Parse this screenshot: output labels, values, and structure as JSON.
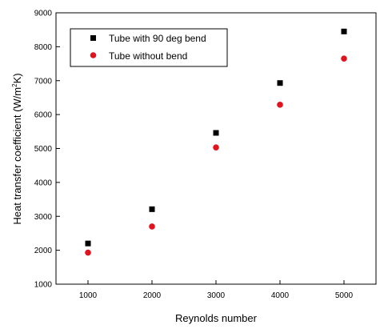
{
  "chart_data": {
    "type": "scatter",
    "title": "",
    "xlabel": "Reynolds number",
    "ylabel_main": "Heat transfer coefficient (W/m",
    "ylabel_sup": "2",
    "ylabel_end": "K)",
    "xlim": [
      500,
      5500
    ],
    "ylim": [
      1000,
      9000
    ],
    "xticks": [
      1000,
      2000,
      3000,
      4000,
      5000
    ],
    "yticks": [
      1000,
      2000,
      3000,
      4000,
      5000,
      6000,
      7000,
      8000,
      9000
    ],
    "grid": false,
    "legend_position": "top-left",
    "series": [
      {
        "name": "Tube with 90 deg bend",
        "marker": "square",
        "color": "#000000",
        "x": [
          1000,
          2000,
          3000,
          4000,
          5000
        ],
        "y": [
          2200,
          3210,
          5460,
          6930,
          8450
        ]
      },
      {
        "name": "Tube without bend",
        "marker": "circle",
        "color": "#e0141e",
        "x": [
          1000,
          2000,
          3000,
          4000,
          5000
        ],
        "y": [
          1930,
          2700,
          5030,
          6290,
          7650
        ]
      }
    ]
  }
}
